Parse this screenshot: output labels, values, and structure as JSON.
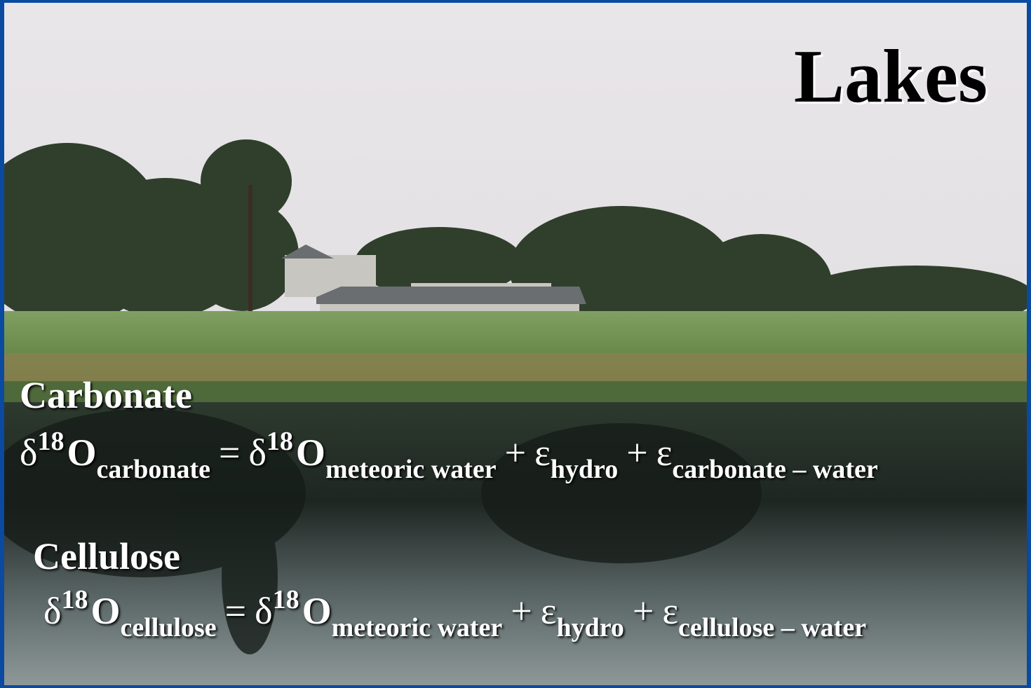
{
  "title": "Lakes",
  "sections": [
    {
      "heading": "Carbonate",
      "equation": [
        {
          "text": "δ",
          "sup": "18"
        },
        {
          "text": "O",
          "sub": "carbonate"
        },
        {
          "text": "="
        },
        {
          "text": "δ",
          "sup": "18"
        },
        {
          "text": "O",
          "sub": "meteoric water"
        },
        {
          "text": "+"
        },
        {
          "text": "ε",
          "sub": "hydro"
        },
        {
          "text": "+"
        },
        {
          "text": "ε",
          "sub": "carbonate – water"
        }
      ]
    },
    {
      "heading": "Cellulose",
      "equation": [
        {
          "text": "δ",
          "sup": "18"
        },
        {
          "text": "O",
          "sub": "cellulose"
        },
        {
          "text": "="
        },
        {
          "text": "δ",
          "sup": "18"
        },
        {
          "text": "O",
          "sub": "meteoric water"
        },
        {
          "text": "+"
        },
        {
          "text": "ε",
          "sub": "hydro"
        },
        {
          "text": "+"
        },
        {
          "text": "ε",
          "sub": "cellulose – water"
        }
      ]
    }
  ]
}
